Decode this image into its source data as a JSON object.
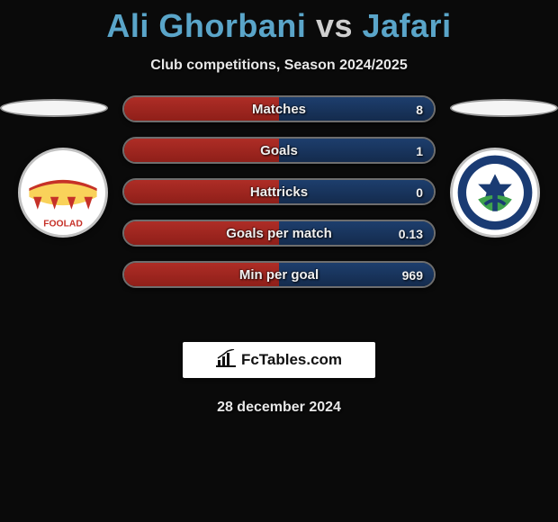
{
  "title": {
    "player1": "Ali Ghorbani",
    "vs": "vs",
    "player2": "Jafari"
  },
  "subtitle": "Club competitions, Season 2024/2025",
  "colors": {
    "player1_accent": "#5aa5c9",
    "player2_accent": "#5aa5c9",
    "vs_color": "#cfcfcf",
    "p1_bar": "#ae2d26",
    "p2_bar": "#1d3e6d",
    "background": "#0a0a0a"
  },
  "stats": [
    {
      "label": "Matches",
      "p1": "",
      "p2": "8",
      "p1_pct": 50,
      "p2_pct": 50
    },
    {
      "label": "Goals",
      "p1": "",
      "p2": "1",
      "p1_pct": 50,
      "p2_pct": 50
    },
    {
      "label": "Hattricks",
      "p1": "",
      "p2": "0",
      "p1_pct": 50,
      "p2_pct": 50
    },
    {
      "label": "Goals per match",
      "p1": "",
      "p2": "0.13",
      "p1_pct": 50,
      "p2_pct": 50
    },
    {
      "label": "Min per goal",
      "p1": "",
      "p2": "969",
      "p1_pct": 50,
      "p2_pct": 50
    }
  ],
  "brand": {
    "text": "FcTables.com"
  },
  "date": "28 december 2024",
  "badges": {
    "left": {
      "name": "Foolad FC",
      "primary": "#c63128",
      "secondary": "#f9d25a",
      "accent": "#ffffff"
    },
    "right": {
      "name": "Malavan",
      "primary": "#1a3b73",
      "secondary": "#3fa34d",
      "accent": "#ffffff"
    }
  }
}
